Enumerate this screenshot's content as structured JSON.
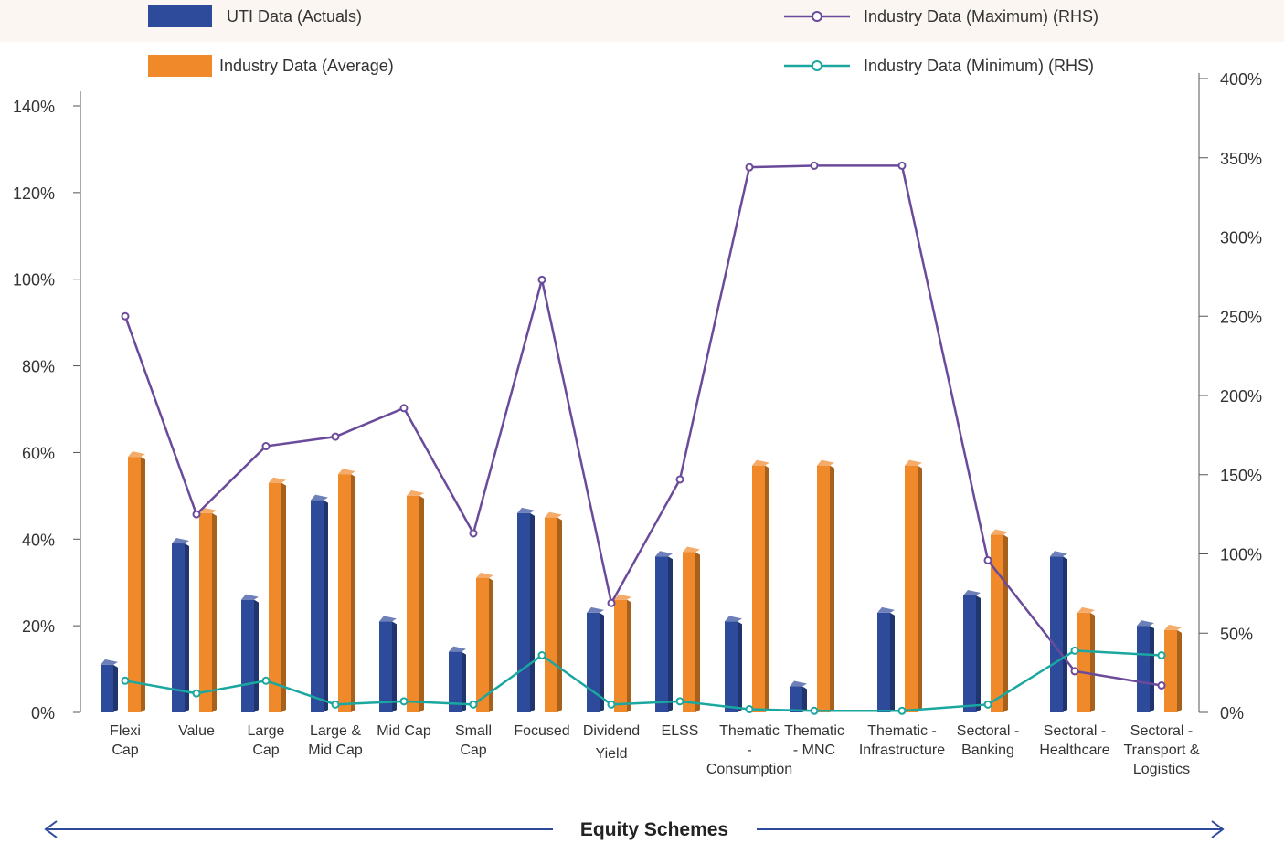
{
  "chart_data": {
    "type": "bar",
    "categories": [
      [
        "Flexi",
        "Cap"
      ],
      [
        "Value"
      ],
      [
        "Large",
        "Cap"
      ],
      [
        "Large &",
        "Mid Cap"
      ],
      [
        "Mid Cap"
      ],
      [
        "Small",
        "Cap"
      ],
      [
        "Focused"
      ],
      [
        "Dividend",
        "Yield"
      ],
      [
        "ELSS"
      ],
      [
        "Thematic",
        "-",
        "Consumption"
      ],
      [
        "Thematic",
        "- MNC"
      ],
      [
        "Thematic -",
        "Infrastructure"
      ],
      [
        "Sectoral -",
        "Banking"
      ],
      [
        "Sectoral -",
        "Healthcare"
      ],
      [
        "Sectoral -",
        "Transport &",
        "Logistics"
      ]
    ],
    "series": [
      {
        "name": "UTI Data (Actuals)",
        "kind": "bar",
        "axis": "left",
        "color": "#2e4a9b",
        "values": [
          11,
          39,
          26,
          49,
          21,
          14,
          46,
          23,
          36,
          21,
          6,
          23,
          27,
          36,
          20
        ]
      },
      {
        "name": "Industry Data (Average)",
        "kind": "bar",
        "axis": "left",
        "color": "#f0892a",
        "values": [
          59,
          46,
          53,
          55,
          50,
          31,
          45,
          26,
          37,
          57,
          57,
          57,
          41,
          23,
          19
        ]
      },
      {
        "name": "Industry Data (Maximum) (RHS)",
        "kind": "line",
        "axis": "right",
        "color": "#6a4a9a",
        "values": [
          250,
          125,
          168,
          174,
          192,
          113,
          273,
          69,
          147,
          344,
          345,
          345,
          96,
          26,
          17
        ]
      },
      {
        "name": "Industry Data (Minimum) (RHS)",
        "kind": "line",
        "axis": "right",
        "color": "#1aa7a0",
        "values": [
          20,
          12,
          20,
          5,
          7,
          5,
          36,
          5,
          7,
          2,
          1,
          1,
          5,
          39,
          36
        ]
      }
    ],
    "y_left": {
      "ticks": [
        "0%",
        "20%",
        "40%",
        "60%",
        "80%",
        "100%",
        "120%",
        "140%"
      ],
      "range": [
        0,
        140
      ]
    },
    "y_right": {
      "ticks": [
        "0%",
        "50%",
        "100%",
        "150%",
        "200%",
        "250%",
        "300%",
        "350%",
        "400%"
      ],
      "range": [
        0,
        400
      ]
    },
    "xlabel": "Equity Schemes",
    "grid": false,
    "legend_position": "top"
  }
}
